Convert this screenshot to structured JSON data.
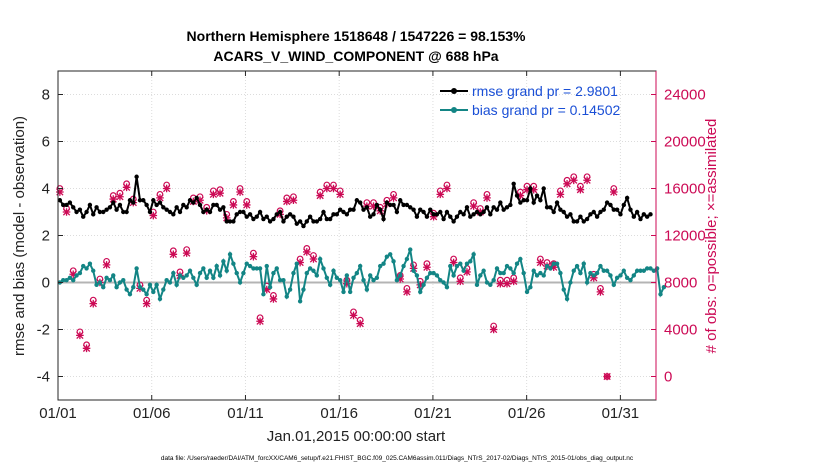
{
  "chart_data": {
    "type": "line",
    "title": "Northern Hemisphere 1518648 / 1547226 = 98.153%",
    "subtitle": "ACARS_V_WIND_COMPONENT @ 688 hPa",
    "xlabel": "Jan.01,2015 00:00:00 start",
    "ylabel": "rmse and bias (model - observation)",
    "ylabel_right": "# of obs: o=possible; ×=assimilated",
    "xlim": [
      0,
      31.9
    ],
    "ylim": [
      -5,
      9
    ],
    "ylim_right": [
      -2000,
      26000
    ],
    "x_ticks": [
      0,
      5,
      10,
      15,
      20,
      25,
      30
    ],
    "x_tick_labels": [
      "01/01",
      "01/06",
      "01/11",
      "01/16",
      "01/21",
      "01/26",
      "01/31"
    ],
    "y_ticks": [
      -4,
      -2,
      0,
      2,
      4,
      6,
      8
    ],
    "y_tick_labels": [
      "-4",
      "-2",
      "0",
      "2",
      "4",
      "6",
      "8"
    ],
    "y_ticks_right": [
      0,
      4000,
      8000,
      12000,
      16000,
      20000,
      24000
    ],
    "y_tick_labels_right": [
      "0",
      "4000",
      "8000",
      "12000",
      "16000",
      "20000",
      "24000"
    ],
    "grid": true,
    "legend": "top-right",
    "colors": {
      "rmse": "#000000",
      "bias": "#138585",
      "obs": "#cc0a55",
      "zero": "#b4b4b4",
      "legend_text": "#1a4fd6"
    },
    "series": [
      {
        "name": "rmse grand pr = 2.9801",
        "axis": "left",
        "values": [
          3.5,
          3.3,
          3.3,
          3.4,
          3.2,
          3.0,
          3.1,
          2.8,
          3.0,
          3.3,
          2.9,
          3.2,
          3.0,
          3.0,
          3.1,
          3.2,
          3.4,
          3.1,
          3.3,
          3.0,
          3.0,
          3.5,
          3.4,
          4.5,
          3.5,
          3.5,
          3.3,
          3.0,
          3.5,
          3.3,
          3.4,
          3.2,
          3.1,
          3.0,
          2.9,
          3.2,
          3.0,
          3.3,
          3.2,
          3.5,
          3.4,
          3.6,
          3.3,
          3.0,
          3.1,
          3.0,
          3.3,
          3.3,
          3.1,
          3.2,
          2.6,
          2.6,
          2.6,
          2.9,
          3.0,
          3.0,
          2.8,
          2.9,
          2.7,
          2.8,
          3.0,
          2.7,
          2.8,
          2.6,
          2.7,
          2.9,
          3.0,
          2.6,
          2.8,
          2.9,
          2.8,
          2.5,
          2.6,
          2.4,
          2.6,
          2.8,
          2.6,
          2.6,
          2.7,
          3.0,
          2.7,
          2.7,
          2.9,
          2.9,
          3.1,
          3.0,
          2.9,
          3.1,
          3.1,
          3.5,
          3.4,
          3.1,
          3.2,
          2.8,
          2.9,
          3.3,
          3.1,
          2.7,
          3.4,
          3.3,
          3.3,
          3.0,
          3.5,
          3.3,
          3.3,
          3.2,
          3.1,
          2.8,
          3.1,
          3.0,
          2.8,
          3.1,
          2.9,
          2.9,
          3.0,
          2.7,
          3.0,
          2.8,
          2.6,
          2.8,
          3.0,
          2.9,
          3.2,
          2.8,
          2.9,
          3.0,
          2.9,
          3.0,
          3.2,
          2.9,
          3.2,
          3.1,
          3.4,
          3.1,
          3.2,
          3.3,
          4.2,
          3.7,
          3.4,
          3.5,
          3.5,
          4.0,
          3.4,
          3.7,
          3.5,
          4.0,
          3.2,
          3.2,
          3.0,
          3.4,
          3.1,
          3.0,
          2.8,
          2.9,
          2.6,
          2.6,
          2.8,
          2.6,
          2.7,
          2.9,
          3.0,
          2.8,
          3.0,
          3.1,
          3.4,
          3.3,
          3.1,
          3.1,
          2.9,
          3.3,
          3.6,
          3.1,
          2.8,
          3.0,
          2.7,
          2.9,
          2.8,
          2.9
        ]
      },
      {
        "name": "bias grand pr = 0.14502",
        "axis": "left",
        "values": [
          0.0,
          0.1,
          0.1,
          0.2,
          0.1,
          0.3,
          0.4,
          0.7,
          0.6,
          0.8,
          0.5,
          -0.1,
          0.0,
          -0.2,
          0.2,
          0.1,
          0.3,
          -0.2,
          0.0,
          0.1,
          -0.3,
          -0.5,
          -0.2,
          0.6,
          -0.2,
          -0.3,
          -0.5,
          -0.1,
          -0.4,
          -0.1,
          -0.7,
          -0.3,
          0.1,
          0.0,
          0.4,
          -0.1,
          0.3,
          0.2,
          0.3,
          0.5,
          0.2,
          -0.1,
          0.4,
          0.6,
          0.2,
          0.5,
          0.2,
          0.7,
          0.3,
          0.9,
          0.5,
          1.2,
          0.8,
          0.4,
          0.0,
          0.4,
          0.8,
          0.7,
          0.6,
          0.6,
          0.6,
          -0.5,
          0.7,
          -0.2,
          0.4,
          0.6,
          0.1,
          0.1,
          -0.6,
          -0.3,
          0.4,
          0.8,
          -0.8,
          -0.3,
          0.4,
          0.6,
          0.5,
          0.3,
          1.0,
          0.6,
          0.2,
          -0.1,
          0.5,
          0.2,
          0.1,
          -0.4,
          0.3,
          -0.4,
          0.2,
          0.4,
          0.7,
          0.1,
          -0.3,
          0.3,
          0.1,
          0.2,
          0.7,
          0.8,
          1.1,
          1.2,
          0.9,
          0.1,
          0.3,
          0.7,
          1.0,
          1.4,
          0.5,
          0.3,
          -0.4,
          -0.1,
          0.2,
          0.4,
          0.4,
          0.3,
          0.1,
          0.0,
          -0.2,
          0.7,
          0.3,
          0.7,
          0.8,
          0.5,
          0.8,
          0.9,
          1.2,
          -0.1,
          0.3,
          0.5,
          0.0,
          -0.1,
          0.1,
          0.6,
          0.4,
          0.4,
          0.7,
          0.6,
          0.4,
          0.8,
          1.0,
          0.4,
          -0.4,
          -0.2,
          0.5,
          0.3,
          0.4,
          0.3,
          0.7,
          0.6,
          0.8,
          0.8,
          0.4,
          -0.3,
          -0.7,
          0.0,
          0.5,
          0.7,
          0.4,
          0.8,
          0.0,
          0.4,
          0.3,
          0.4,
          0.7,
          0.5,
          0.5,
          0.3,
          -0.1,
          0.2,
          0.3,
          0.5,
          0.2,
          0.1,
          0.3,
          0.5,
          0.5,
          0.5,
          0.6,
          0.6,
          0.5,
          0.6,
          -0.5,
          -0.2
        ]
      },
      {
        "name": "possible",
        "axis": "right",
        "marker": "o",
        "values": [
          16000,
          15200,
          14300,
          12500,
          9000,
          5800,
          3800,
          3200,
          2700,
          6500,
          6500,
          6900,
          8300,
          9000,
          9800,
          9300,
          15400,
          16200,
          15600,
          14900,
          16400,
          15500,
          15100,
          15200,
          7800,
          7100,
          6500,
          7800,
          14000,
          14600,
          15500,
          16100,
          16300,
          10000,
          10700,
          10400,
          8900,
          9400,
          10800,
          10400,
          15200,
          15800,
          15300,
          15600,
          14400,
          14300,
          15800,
          15300,
          15900,
          14700,
          13800,
          15000,
          14900,
          15200,
          16000,
          15600,
          14900,
          15200,
          10500,
          9400,
          5000,
          4200,
          7700,
          7300,
          6900,
          6900,
          14100,
          14300,
          15200,
          15700,
          15300,
          9600,
          10000,
          9800,
          10900,
          9500,
          10300,
          10400,
          15700,
          16000,
          16300,
          16700,
          16300,
          16900,
          15800,
          7400,
          8200,
          6000,
          5500,
          3700,
          4800,
          5200,
          14800,
          15500,
          14800,
          15000,
          14400,
          15700,
          15000,
          15300,
          15500,
          14900,
          8600,
          7900,
          7500,
          8900,
          9500,
          8300,
          8100,
          9200,
          9600,
          14300,
          13900,
          15400,
          15800,
          16500,
          16300,
          16700,
          10000,
          8900,
          8400,
          8100,
          9200,
          15000,
          14800,
          15400,
          14300,
          15600,
          15500,
          3700,
          4300,
          5500,
          8200,
          6700,
          8200,
          9100,
          8400,
          7200,
          15700,
          15300,
          16200,
          16400,
          16200,
          9900,
          10000,
          10600,
          9700,
          8900,
          9600,
          14900,
          15800,
          16500,
          16700,
          16300,
          17000,
          15700,
          16200,
          16600,
          17000,
          16400,
          8700,
          7300,
          7500,
          7300,
          0,
          0,
          16000
        ]
      },
      {
        "name": "assimilated",
        "axis": "right",
        "marker": "x",
        "values": [
          15700,
          14900,
          14000,
          12200,
          8700,
          5500,
          3500,
          2900,
          2400,
          6200,
          6200,
          6600,
          8000,
          8700,
          9500,
          9000,
          15100,
          15900,
          15300,
          14600,
          16100,
          15200,
          14800,
          14900,
          7500,
          6800,
          6200,
          7500,
          13700,
          14300,
          15200,
          15800,
          16000,
          9700,
          10400,
          10100,
          8600,
          9100,
          10500,
          10100,
          14900,
          15500,
          15000,
          15300,
          14100,
          14000,
          15500,
          15000,
          15600,
          14400,
          13500,
          14700,
          14600,
          14900,
          15700,
          15300,
          14600,
          14900,
          10200,
          9100,
          4700,
          3900,
          7400,
          7000,
          6600,
          6600,
          13800,
          14000,
          14900,
          15400,
          15000,
          9300,
          9700,
          9500,
          10600,
          9200,
          10000,
          10100,
          15400,
          15700,
          16000,
          16400,
          16000,
          16600,
          15500,
          7100,
          7900,
          5700,
          5200,
          3400,
          4500,
          4900,
          14500,
          15200,
          14500,
          14700,
          14100,
          15400,
          14700,
          15000,
          15200,
          14600,
          8300,
          7600,
          7200,
          8600,
          9200,
          8000,
          7800,
          8900,
          9300,
          14000,
          13600,
          15100,
          15500,
          16200,
          16000,
          16400,
          9700,
          8600,
          8100,
          7800,
          8900,
          14700,
          14500,
          15100,
          14000,
          15300,
          15200,
          3400,
          4000,
          5200,
          7900,
          6400,
          7900,
          8800,
          8100,
          6900,
          15400,
          15000,
          15900,
          16100,
          15900,
          9600,
          9700,
          10300,
          9400,
          8600,
          9300,
          14600,
          15500,
          16200,
          16400,
          16000,
          16700,
          15400,
          15900,
          16300,
          16700,
          16100,
          8400,
          7000,
          7200,
          7000,
          0,
          0,
          15700
        ]
      }
    ],
    "footer": "data file: /Users/raeder/DAI/ATM_forcXX/CAM6_setup/f.e21.FHIST_BGC.f09_025.CAM6assim.011/Diags_NTrS_2017-02/Diags_NTrS_2015-01/obs_diag_output.nc"
  }
}
